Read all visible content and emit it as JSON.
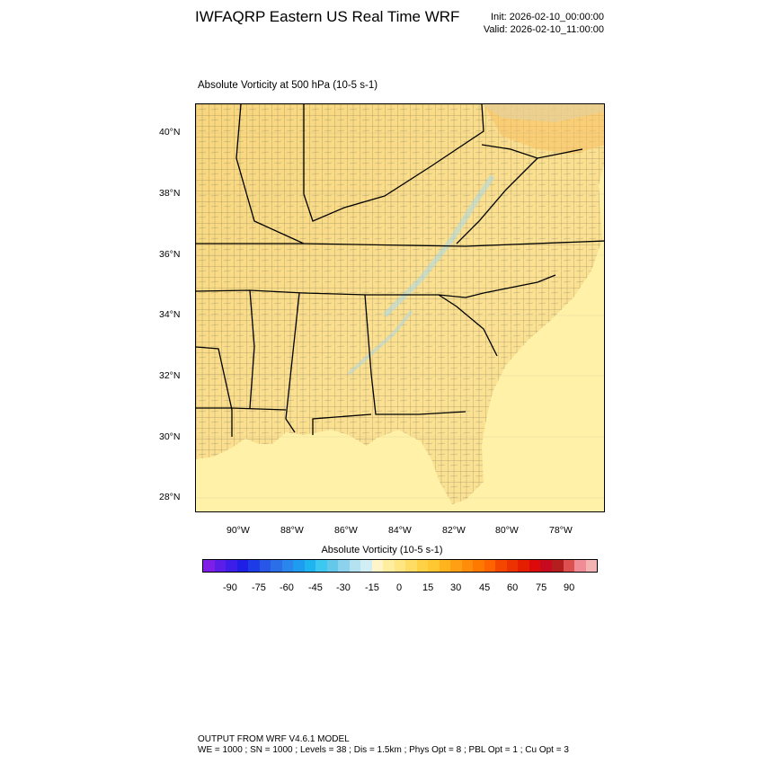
{
  "header": {
    "title": "IWFAQRP Eastern US Real Time WRF",
    "init": "Init: 2026-02-10_00:00:00",
    "valid": "Valid: 2026-02-10_11:00:00"
  },
  "map": {
    "subtitle": "Absolute Vorticity at 500 hPa   (10-5 s-1)",
    "lat_labels": [
      "40°N",
      "38°N",
      "36°N",
      "34°N",
      "32°N",
      "30°N",
      "28°N"
    ],
    "lon_labels": [
      "90°W",
      "88°W",
      "86°W",
      "84°W",
      "82°W",
      "80°W",
      "78°W"
    ],
    "land_color": "#fbe08c",
    "ocean_color": "#fff2a6",
    "lake_color": "#c6e8f2"
  },
  "colorbar": {
    "label": "Absolute Vorticity  (10-5 s-1)",
    "ticks": [
      "-90",
      "-75",
      "-60",
      "-45",
      "-30",
      "-15",
      "0",
      "15",
      "30",
      "45",
      "60",
      "75",
      "90"
    ],
    "colors": [
      "#7f1ee6",
      "#5a1ee8",
      "#3c1ee8",
      "#1e1ee6",
      "#1e3ce6",
      "#2856e6",
      "#2a6ee8",
      "#2a86ec",
      "#1e9cf0",
      "#1eb4f0",
      "#3cc8f0",
      "#64c8ea",
      "#8cd2ec",
      "#b4e2f0",
      "#d2eef5",
      "#fff5c8",
      "#ffeea0",
      "#ffe682",
      "#ffdc64",
      "#ffd246",
      "#ffc832",
      "#ffb41e",
      "#ffa014",
      "#ff8c0a",
      "#ff7800",
      "#ff6400",
      "#f54600",
      "#eb3200",
      "#e61e00",
      "#dc0a0a",
      "#c80a1e",
      "#b41e1e",
      "#dc5050",
      "#f08c96",
      "#f5b4b4"
    ]
  },
  "footer": {
    "line1": "OUTPUT FROM WRF V4.6.1 MODEL",
    "line2": "WE = 1000 ; SN = 1000 ; Levels = 38 ; Dis = 1.5km ; Phys Opt = 8 ; PBL Opt = 1 ; Cu Opt = 3"
  }
}
